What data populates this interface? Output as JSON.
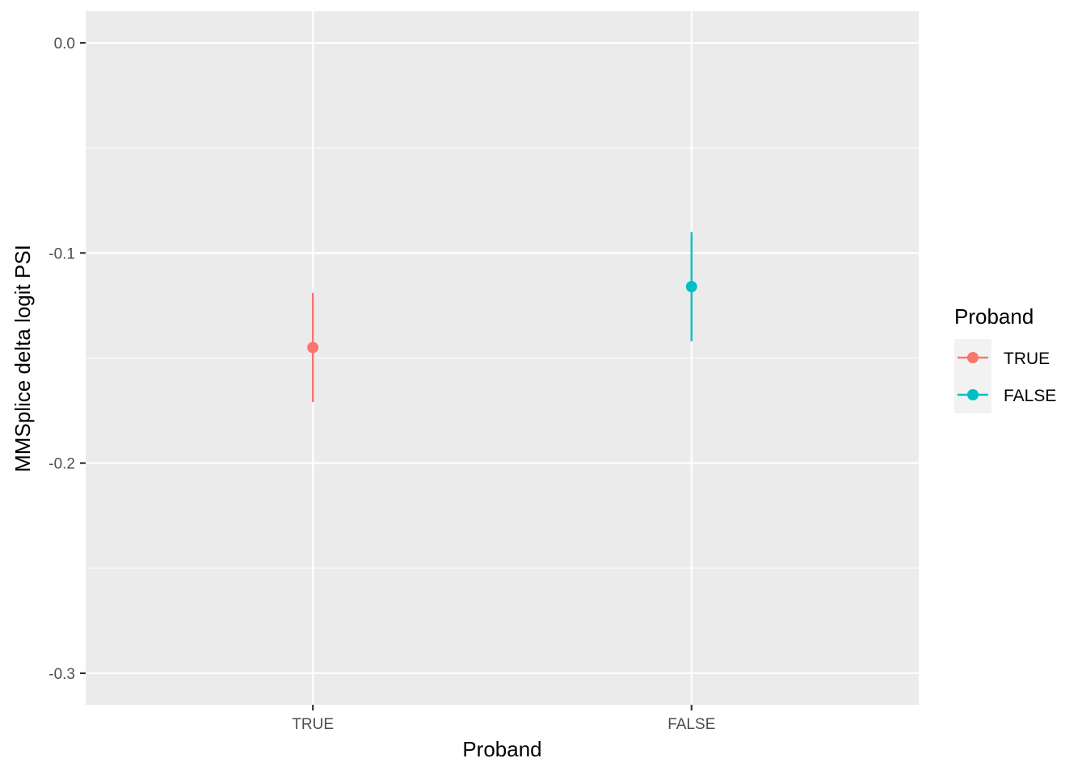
{
  "chart_data": {
    "type": "pointrange",
    "title": "",
    "xlabel": "Proband",
    "ylabel": "MMSplice delta logit PSI",
    "categories": [
      "TRUE",
      "FALSE"
    ],
    "series": [
      {
        "name": "TRUE",
        "category": "TRUE",
        "y": -0.145,
        "ymin": -0.171,
        "ymax": -0.119,
        "color": "#F8766D"
      },
      {
        "name": "FALSE",
        "category": "FALSE",
        "y": -0.116,
        "ymin": -0.142,
        "ymax": -0.09,
        "color": "#00BFC4"
      }
    ],
    "ylim": [
      -0.315,
      0.015
    ],
    "yticks": [
      0.0,
      -0.1,
      -0.2,
      -0.3
    ],
    "ytick_labels": [
      "0.0",
      "-0.1",
      "-0.2",
      "-0.3"
    ],
    "grid": true,
    "legend": {
      "title": "Proband",
      "position": "right",
      "entries": [
        "TRUE",
        "FALSE"
      ]
    },
    "panel_color": "#EBEBEB",
    "grid_color": "#FFFFFF"
  }
}
